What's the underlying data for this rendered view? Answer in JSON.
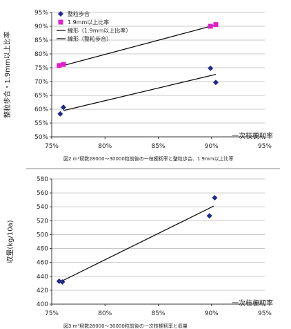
{
  "chart_data": [
    {
      "type": "scatter",
      "caption": "図2 m²籾数28000～30000粒前後の一枝梗籾率と整粒歩合、1.9mm以上比率",
      "xlabel": "一次枝梗籾率",
      "ylabel": "整粒歩合・1.9mm以上比率",
      "x_ticks": [
        "75%",
        "80%",
        "85%",
        "90%",
        "95%"
      ],
      "y_ticks": [
        "50%",
        "55%",
        "60%",
        "65%",
        "70%",
        "75%",
        "80%",
        "85%",
        "90%",
        "95%"
      ],
      "xlim": [
        0.75,
        0.95
      ],
      "ylim": [
        0.5,
        0.95
      ],
      "grid": "horizontal",
      "legend_position": "top-left",
      "series": [
        {
          "name": "整粒歩合",
          "marker": "diamond",
          "color": "#1f2a8c",
          "points": [
            {
              "x": 0.758,
              "y": 0.583
            },
            {
              "x": 0.761,
              "y": 0.607
            },
            {
              "x": 0.899,
              "y": 0.748
            },
            {
              "x": 0.904,
              "y": 0.697
            }
          ]
        },
        {
          "name": "1.9mm以上比率",
          "marker": "square",
          "color": "#e020c8",
          "points": [
            {
              "x": 0.757,
              "y": 0.758
            },
            {
              "x": 0.761,
              "y": 0.762
            },
            {
              "x": 0.899,
              "y": 0.9
            },
            {
              "x": 0.904,
              "y": 0.906
            }
          ]
        }
      ],
      "trendlines": [
        {
          "name": "線形（1.9mm以上比率）",
          "from": [
            0.761,
            0.758
          ],
          "to": [
            0.904,
            0.905
          ]
        },
        {
          "name": "線形（整粒歩合）",
          "from": [
            0.761,
            0.595
          ],
          "to": [
            0.904,
            0.726
          ]
        }
      ]
    },
    {
      "type": "scatter",
      "caption": "図3 m²籾数28000～30000粒前後の一次枝梗籾率と収量",
      "xlabel": "一次枝梗籾率",
      "ylabel": "収量(kg/10a)",
      "x_ticks": [
        "75%",
        "80%",
        "85%",
        "90%",
        "95%"
      ],
      "y_ticks": [
        "400",
        "420",
        "440",
        "460",
        "480",
        "500",
        "520",
        "540",
        "560",
        "580"
      ],
      "xlim": [
        0.75,
        0.95
      ],
      "ylim": [
        400,
        580
      ],
      "grid": "horizontal",
      "series": [
        {
          "marker": "diamond",
          "color": "#1f2a8c",
          "points": [
            {
              "x": 0.757,
              "y": 433
            },
            {
              "x": 0.76,
              "y": 432
            },
            {
              "x": 0.898,
              "y": 527
            },
            {
              "x": 0.903,
              "y": 553
            }
          ]
        }
      ],
      "trendlines": [
        {
          "from": [
            0.758,
            432
          ],
          "to": [
            0.902,
            541
          ]
        }
      ]
    }
  ]
}
